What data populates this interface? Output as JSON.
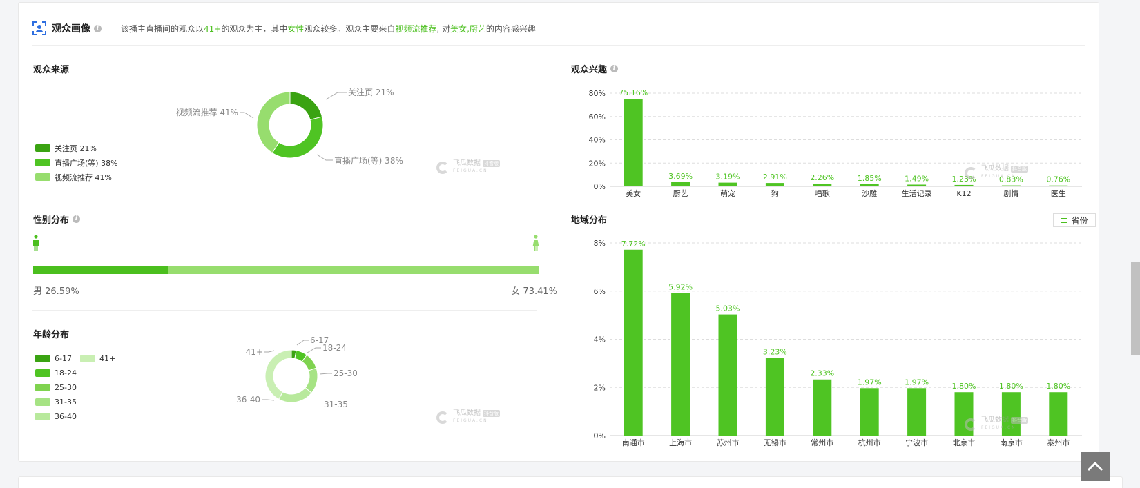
{
  "header": {
    "title": "观众画像",
    "summary_parts": [
      "该播主直播间的观众以",
      "41+",
      "的观众为主，其中",
      "女性",
      "观众较多。观众主要来自",
      "视频流推荐",
      ", 对",
      "美女",
      ",",
      "厨艺",
      "的内容感兴趣"
    ]
  },
  "source": {
    "title": "观众来源",
    "legend": [
      {
        "label": "关注页 21%",
        "color": "#3aa312"
      },
      {
        "label": "直播广场(等) 38%",
        "color": "#4fc423"
      },
      {
        "label": "视频流推荐 41%",
        "color": "#97dd6e"
      }
    ],
    "callouts": [
      "关注页 21%",
      "直播广场(等) 38%",
      "视频流推荐 41%"
    ],
    "chart_data": {
      "type": "pie",
      "title": "观众来源",
      "labels": [
        "关注页",
        "直播广场(等)",
        "视频流推荐"
      ],
      "values": [
        21,
        38,
        41
      ],
      "colors": [
        "#3aa312",
        "#4fc423",
        "#97dd6e"
      ]
    }
  },
  "interest": {
    "title": "观众兴趣",
    "chart_data": {
      "type": "bar",
      "title": "观众兴趣",
      "categories": [
        "美女",
        "厨艺",
        "萌宠",
        "狗",
        "唱歌",
        "沙雕",
        "生活记录",
        "K12",
        "剧情",
        "医生"
      ],
      "values": [
        75.16,
        3.69,
        3.19,
        2.91,
        2.26,
        1.85,
        1.49,
        1.23,
        0.83,
        0.76
      ],
      "value_labels": [
        "75.16%",
        "3.69%",
        "3.19%",
        "2.91%",
        "2.26%",
        "1.85%",
        "1.49%",
        "1.23%",
        "0.83%",
        "0.76%"
      ],
      "yticks": [
        "0%",
        "20%",
        "40%",
        "60%",
        "80%"
      ],
      "ylim": [
        0,
        80
      ],
      "grid": true,
      "color": "#4fc423"
    }
  },
  "gender": {
    "title": "性别分布",
    "male_label": "男 26.59%",
    "female_label": "女 73.41%",
    "male_pct": 26.59,
    "female_pct": 73.41,
    "male_color": "#4bbf1e",
    "female_color": "#97dd6e"
  },
  "age": {
    "title": "年龄分布",
    "legend": [
      {
        "label": "6-17",
        "color": "#3aa312"
      },
      {
        "label": "41+",
        "color": "#c9efb3"
      },
      {
        "label": "18-24",
        "color": "#4fc423"
      },
      {
        "label": "25-30",
        "color": "#7fd34f"
      },
      {
        "label": "31-35",
        "color": "#a6e384"
      },
      {
        "label": "36-40",
        "color": "#b8e99c"
      }
    ],
    "chart_data": {
      "type": "pie",
      "title": "年龄分布",
      "labels": [
        "6-17",
        "18-24",
        "25-30",
        "31-35",
        "36-40",
        "41+"
      ],
      "values": [
        3,
        7,
        10,
        16,
        22,
        42
      ],
      "colors": [
        "#3aa312",
        "#4fc423",
        "#7fd34f",
        "#a6e384",
        "#b8e99c",
        "#c9efb3"
      ]
    }
  },
  "region": {
    "title": "地域分布",
    "province_button": "省份",
    "chart_data": {
      "type": "bar",
      "title": "地域分布",
      "categories": [
        "南通市",
        "上海市",
        "苏州市",
        "无锡市",
        "常州市",
        "杭州市",
        "宁波市",
        "北京市",
        "南京市",
        "泰州市"
      ],
      "values": [
        7.72,
        5.92,
        5.03,
        3.23,
        2.33,
        1.97,
        1.97,
        1.8,
        1.8,
        1.8
      ],
      "value_labels": [
        "7.72%",
        "5.92%",
        "5.03%",
        "3.23%",
        "2.33%",
        "1.97%",
        "1.97%",
        "1.80%",
        "1.80%",
        "1.80%"
      ],
      "yticks": [
        "0%",
        "2%",
        "4%",
        "6%",
        "8%"
      ],
      "ylim": [
        0,
        8
      ],
      "grid": true,
      "color": "#4fc423"
    }
  },
  "watermark": {
    "name": "飞瓜数据",
    "sub": "FEIGUA.CN",
    "badge": "抖音版"
  },
  "colors": {
    "accent": "#4bbf1e"
  }
}
